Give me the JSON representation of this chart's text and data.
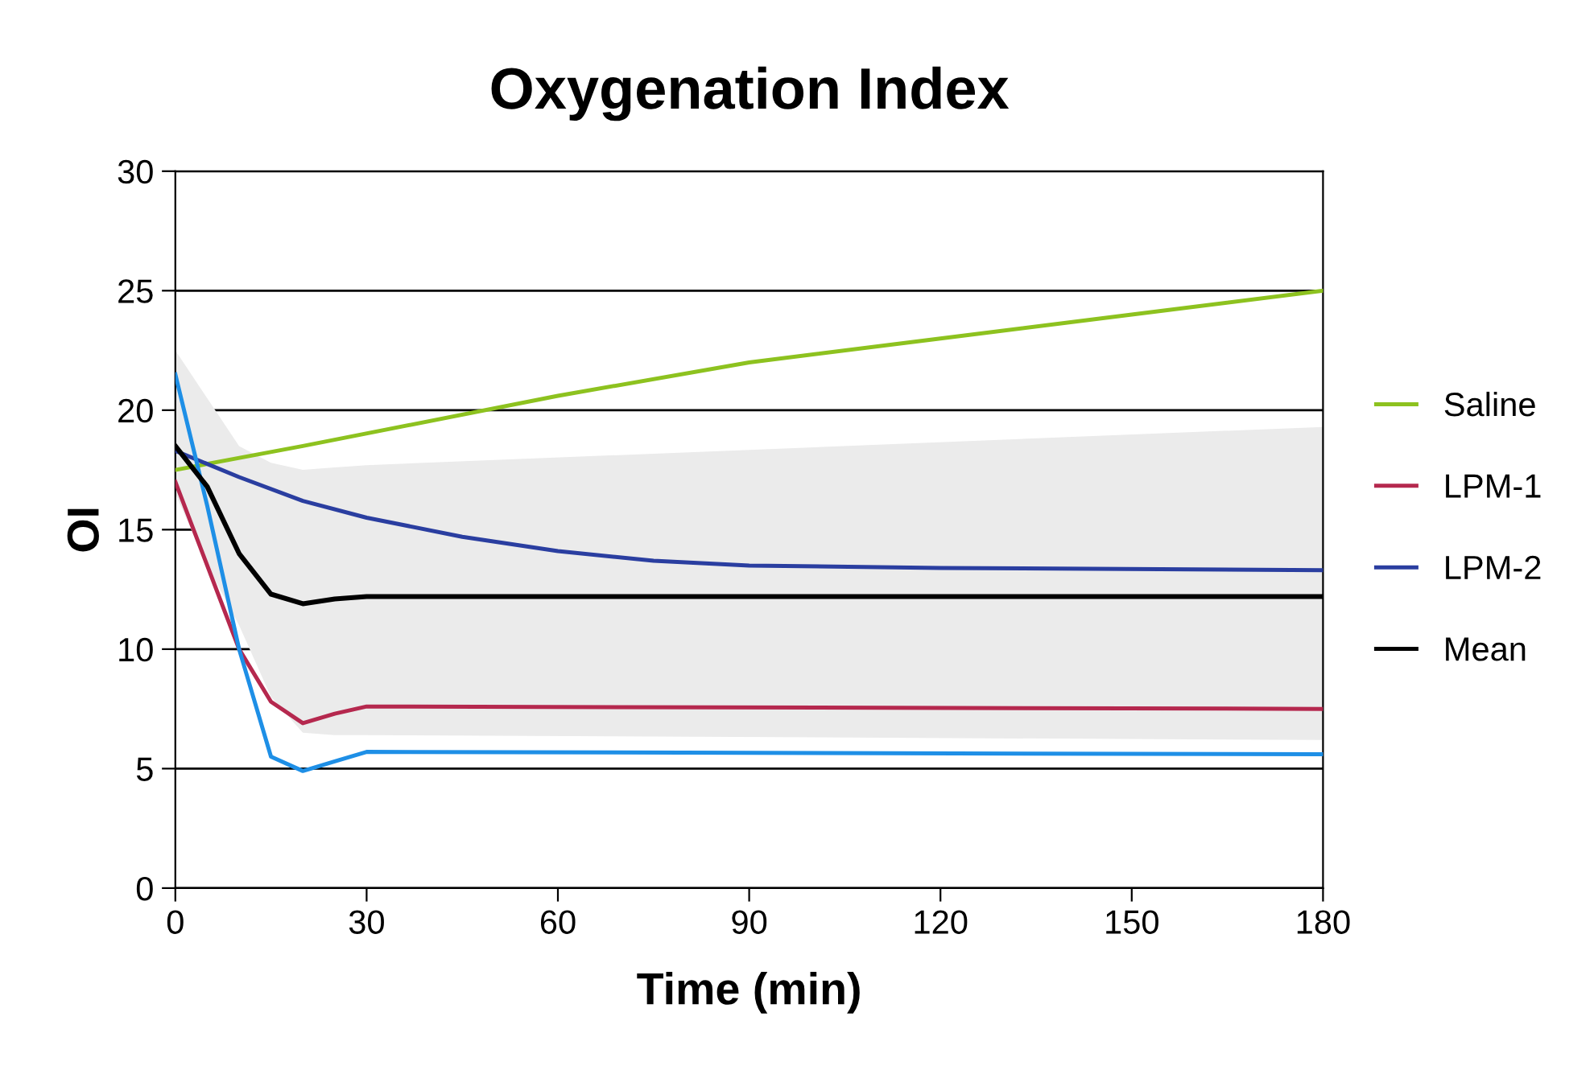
{
  "chart_data": {
    "type": "line",
    "title": "Oxygenation Index",
    "xlabel": "Time (min)",
    "ylabel": "OI",
    "xlim": [
      0,
      180
    ],
    "xticks": [
      0,
      30,
      60,
      90,
      120,
      150,
      180
    ],
    "ylim": [
      0,
      30
    ],
    "yticks": [
      0,
      5,
      10,
      15,
      20,
      25,
      30
    ],
    "grid": "y",
    "legend": "right",
    "marker": "none",
    "line_style": "solid",
    "series": [
      {
        "name": "Saline",
        "color": "#8dc21f",
        "x": [
          0,
          20,
          60,
          90,
          120,
          150,
          180
        ],
        "values": [
          17.5,
          18.5,
          20.6,
          22.0,
          23.0,
          24.0,
          25.0
        ]
      },
      {
        "name": "LPM-1",
        "color": "#b5284e",
        "x": [
          0,
          5,
          10,
          15,
          20,
          25,
          30,
          180
        ],
        "values": [
          17.0,
          13.5,
          10.0,
          7.8,
          6.9,
          7.3,
          7.6,
          7.5
        ]
      },
      {
        "name": "LPM-2",
        "color": "#2a3ea0",
        "x": [
          0,
          10,
          20,
          30,
          45,
          60,
          75,
          90,
          120,
          180
        ],
        "values": [
          18.3,
          17.2,
          16.2,
          15.5,
          14.7,
          14.1,
          13.7,
          13.5,
          13.4,
          13.3
        ]
      },
      {
        "color": "#1e8fe6",
        "x": [
          0,
          5,
          10,
          15,
          20,
          25,
          30,
          180
        ],
        "values": [
          21.5,
          16.0,
          10.0,
          5.5,
          4.9,
          5.3,
          5.7,
          5.6
        ]
      },
      {
        "name": "Mean",
        "color": "#000000",
        "x": [
          0,
          5,
          10,
          15,
          20,
          25,
          30,
          180
        ],
        "values": [
          18.5,
          16.8,
          14.0,
          12.3,
          11.9,
          12.1,
          12.2,
          12.2
        ],
        "lower": [
          16.5,
          13.5,
          11.0,
          8.0,
          6.5,
          6.4,
          6.4,
          6.2
        ],
        "upper": [
          22.5,
          20.5,
          18.5,
          17.8,
          17.5,
          17.6,
          17.7,
          19.3
        ]
      }
    ]
  }
}
